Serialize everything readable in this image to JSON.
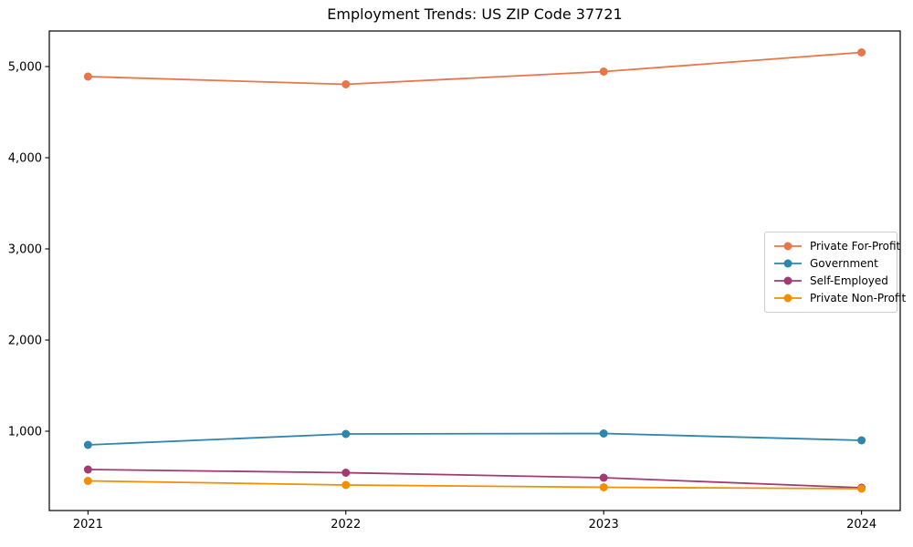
{
  "chart_data": {
    "type": "line",
    "title": "Employment Trends: US ZIP Code 37721",
    "xlabel": "",
    "ylabel": "",
    "x": [
      2021,
      2022,
      2023,
      2024
    ],
    "x_tick_labels": [
      "2021",
      "2022",
      "2023",
      "2024"
    ],
    "y_ticks": [
      1000,
      2000,
      3000,
      4000,
      5000
    ],
    "y_tick_labels": [
      "1,000",
      "2,000",
      "3,000",
      "4,000",
      "5,000"
    ],
    "xlim": [
      2020.85,
      2024.15
    ],
    "ylim": [
      130,
      5390
    ],
    "grid": false,
    "legend_position": "center right",
    "series": [
      {
        "name": "Private For-Profit",
        "color": "#E8764B",
        "values": [
          4890,
          4805,
          4945,
          5155
        ]
      },
      {
        "name": "Government",
        "color": "#2E86AB",
        "values": [
          850,
          970,
          975,
          900
        ]
      },
      {
        "name": "Self-Employed",
        "color": "#A23B72",
        "values": [
          580,
          545,
          490,
          380
        ]
      },
      {
        "name": "Private Non-Profit",
        "color": "#F18F01",
        "values": [
          455,
          410,
          385,
          370
        ]
      }
    ],
    "axis_color": "#000000"
  }
}
